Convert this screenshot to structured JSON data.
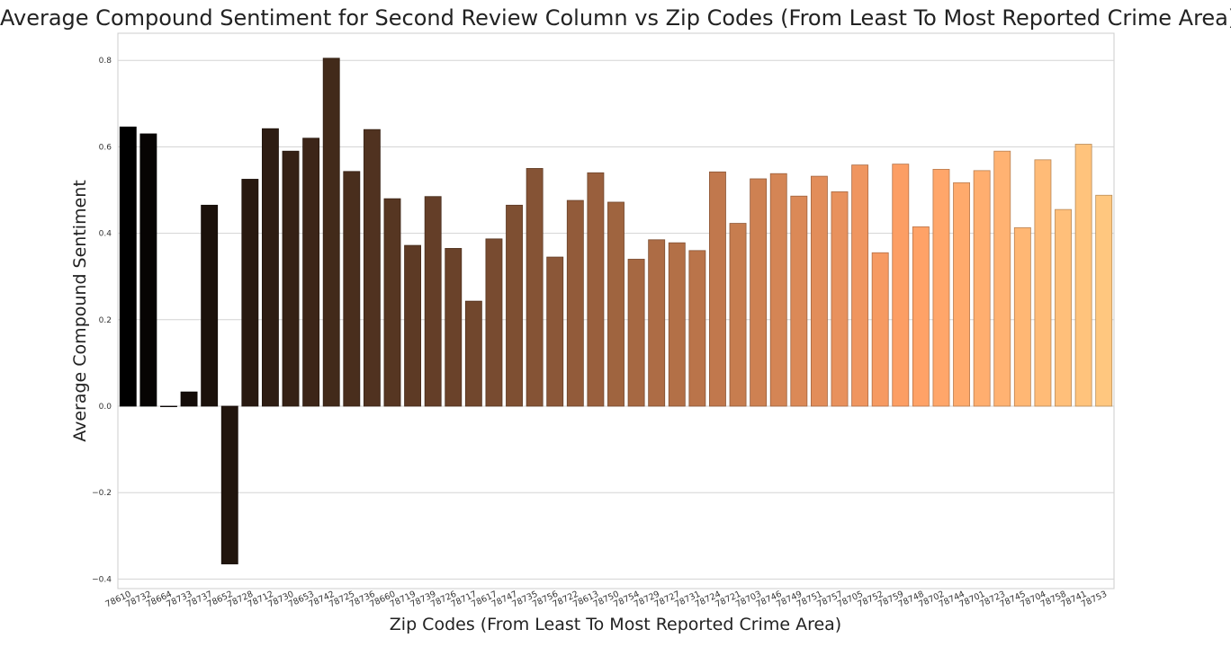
{
  "chart_data": {
    "type": "bar",
    "title": "Average Compound Sentiment for Second Review Column vs Zip Codes (From Least To Most Reported Crime Area)",
    "xlabel": "Zip Codes (From Least To Most Reported Crime Area)",
    "ylabel": "Average Compound Sentiment",
    "ylim": [
      -0.42,
      0.86
    ],
    "yticks": [
      -0.4,
      -0.2,
      0.0,
      0.2,
      0.4,
      0.6,
      0.8
    ],
    "ytick_labels": [
      "−0.4",
      "−0.2",
      "0.0",
      "0.2",
      "0.4",
      "0.6",
      "0.8"
    ],
    "grid": true,
    "colormap": "copper",
    "categories": [
      "78610",
      "78732",
      "78664",
      "78733",
      "78737",
      "78652",
      "78728",
      "78712",
      "78730",
      "78653",
      "78742",
      "78725",
      "78736",
      "78660",
      "78719",
      "78739",
      "78726",
      "78717",
      "78617",
      "78747",
      "78735",
      "78756",
      "78722",
      "78613",
      "78750",
      "78754",
      "78729",
      "78727",
      "78731",
      "78724",
      "78721",
      "78703",
      "78746",
      "78749",
      "78751",
      "78757",
      "78705",
      "78752",
      "78759",
      "78748",
      "78702",
      "78744",
      "78701",
      "78723",
      "78745",
      "78704",
      "78758",
      "78741",
      "78753"
    ],
    "values": [
      0.646,
      0.63,
      0.0,
      0.033,
      0.465,
      -0.365,
      0.525,
      0.642,
      0.59,
      0.62,
      0.805,
      0.543,
      0.64,
      0.48,
      0.372,
      0.485,
      0.365,
      0.243,
      0.387,
      0.465,
      0.55,
      0.345,
      0.476,
      0.54,
      0.472,
      0.34,
      0.385,
      0.378,
      0.36,
      0.542,
      0.423,
      0.526,
      0.538,
      0.486,
      0.532,
      0.496,
      0.558,
      0.355,
      0.56,
      0.415,
      0.548,
      0.517,
      0.545,
      0.59,
      0.413,
      0.57,
      0.455,
      0.606,
      0.488
    ]
  }
}
